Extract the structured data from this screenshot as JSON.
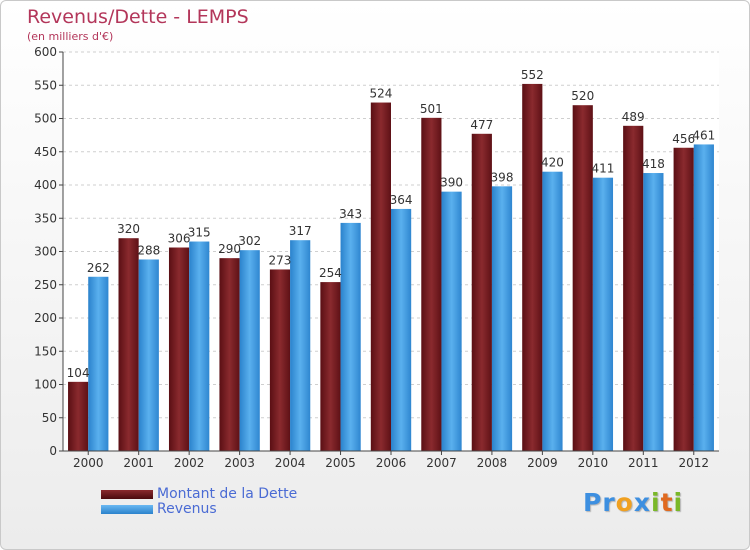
{
  "colors": {
    "dette": "#7a1e24",
    "revenus": "#3d9be0",
    "title": "#b3365a",
    "legend_text": "#4a6bd4"
  },
  "chart_data": {
    "type": "bar",
    "title": "Revenus/Dette - LEMPS",
    "subtitle": "(en milliers d'€)",
    "categories": [
      "2000",
      "2001",
      "2002",
      "2003",
      "2004",
      "2005",
      "2006",
      "2007",
      "2008",
      "2009",
      "2010",
      "2011",
      "2012"
    ],
    "series": [
      {
        "name": "Montant de la Dette",
        "values": [
          104,
          320,
          306,
          290,
          273,
          254,
          524,
          501,
          477,
          552,
          520,
          489,
          456
        ]
      },
      {
        "name": "Revenus",
        "values": [
          262,
          288,
          315,
          302,
          317,
          343,
          364,
          390,
          398,
          420,
          411,
          418,
          461
        ]
      }
    ],
    "ylim": [
      0,
      600
    ],
    "yticks": [
      0,
      50,
      100,
      150,
      200,
      250,
      300,
      350,
      400,
      450,
      500,
      550,
      600
    ],
    "grid": true,
    "legend_position": "bottom-left"
  },
  "logo": {
    "letters": [
      {
        "ch": "P",
        "color": "#3d8fe0"
      },
      {
        "ch": "r",
        "color": "#3d8fe0"
      },
      {
        "ch": "o",
        "color": "#f0a020"
      },
      {
        "ch": "x",
        "color": "#3d8fe0"
      },
      {
        "ch": "i",
        "color": "#7ab828"
      },
      {
        "ch": "t",
        "color": "#e06a20"
      },
      {
        "ch": "i",
        "color": "#7ab828"
      }
    ]
  }
}
